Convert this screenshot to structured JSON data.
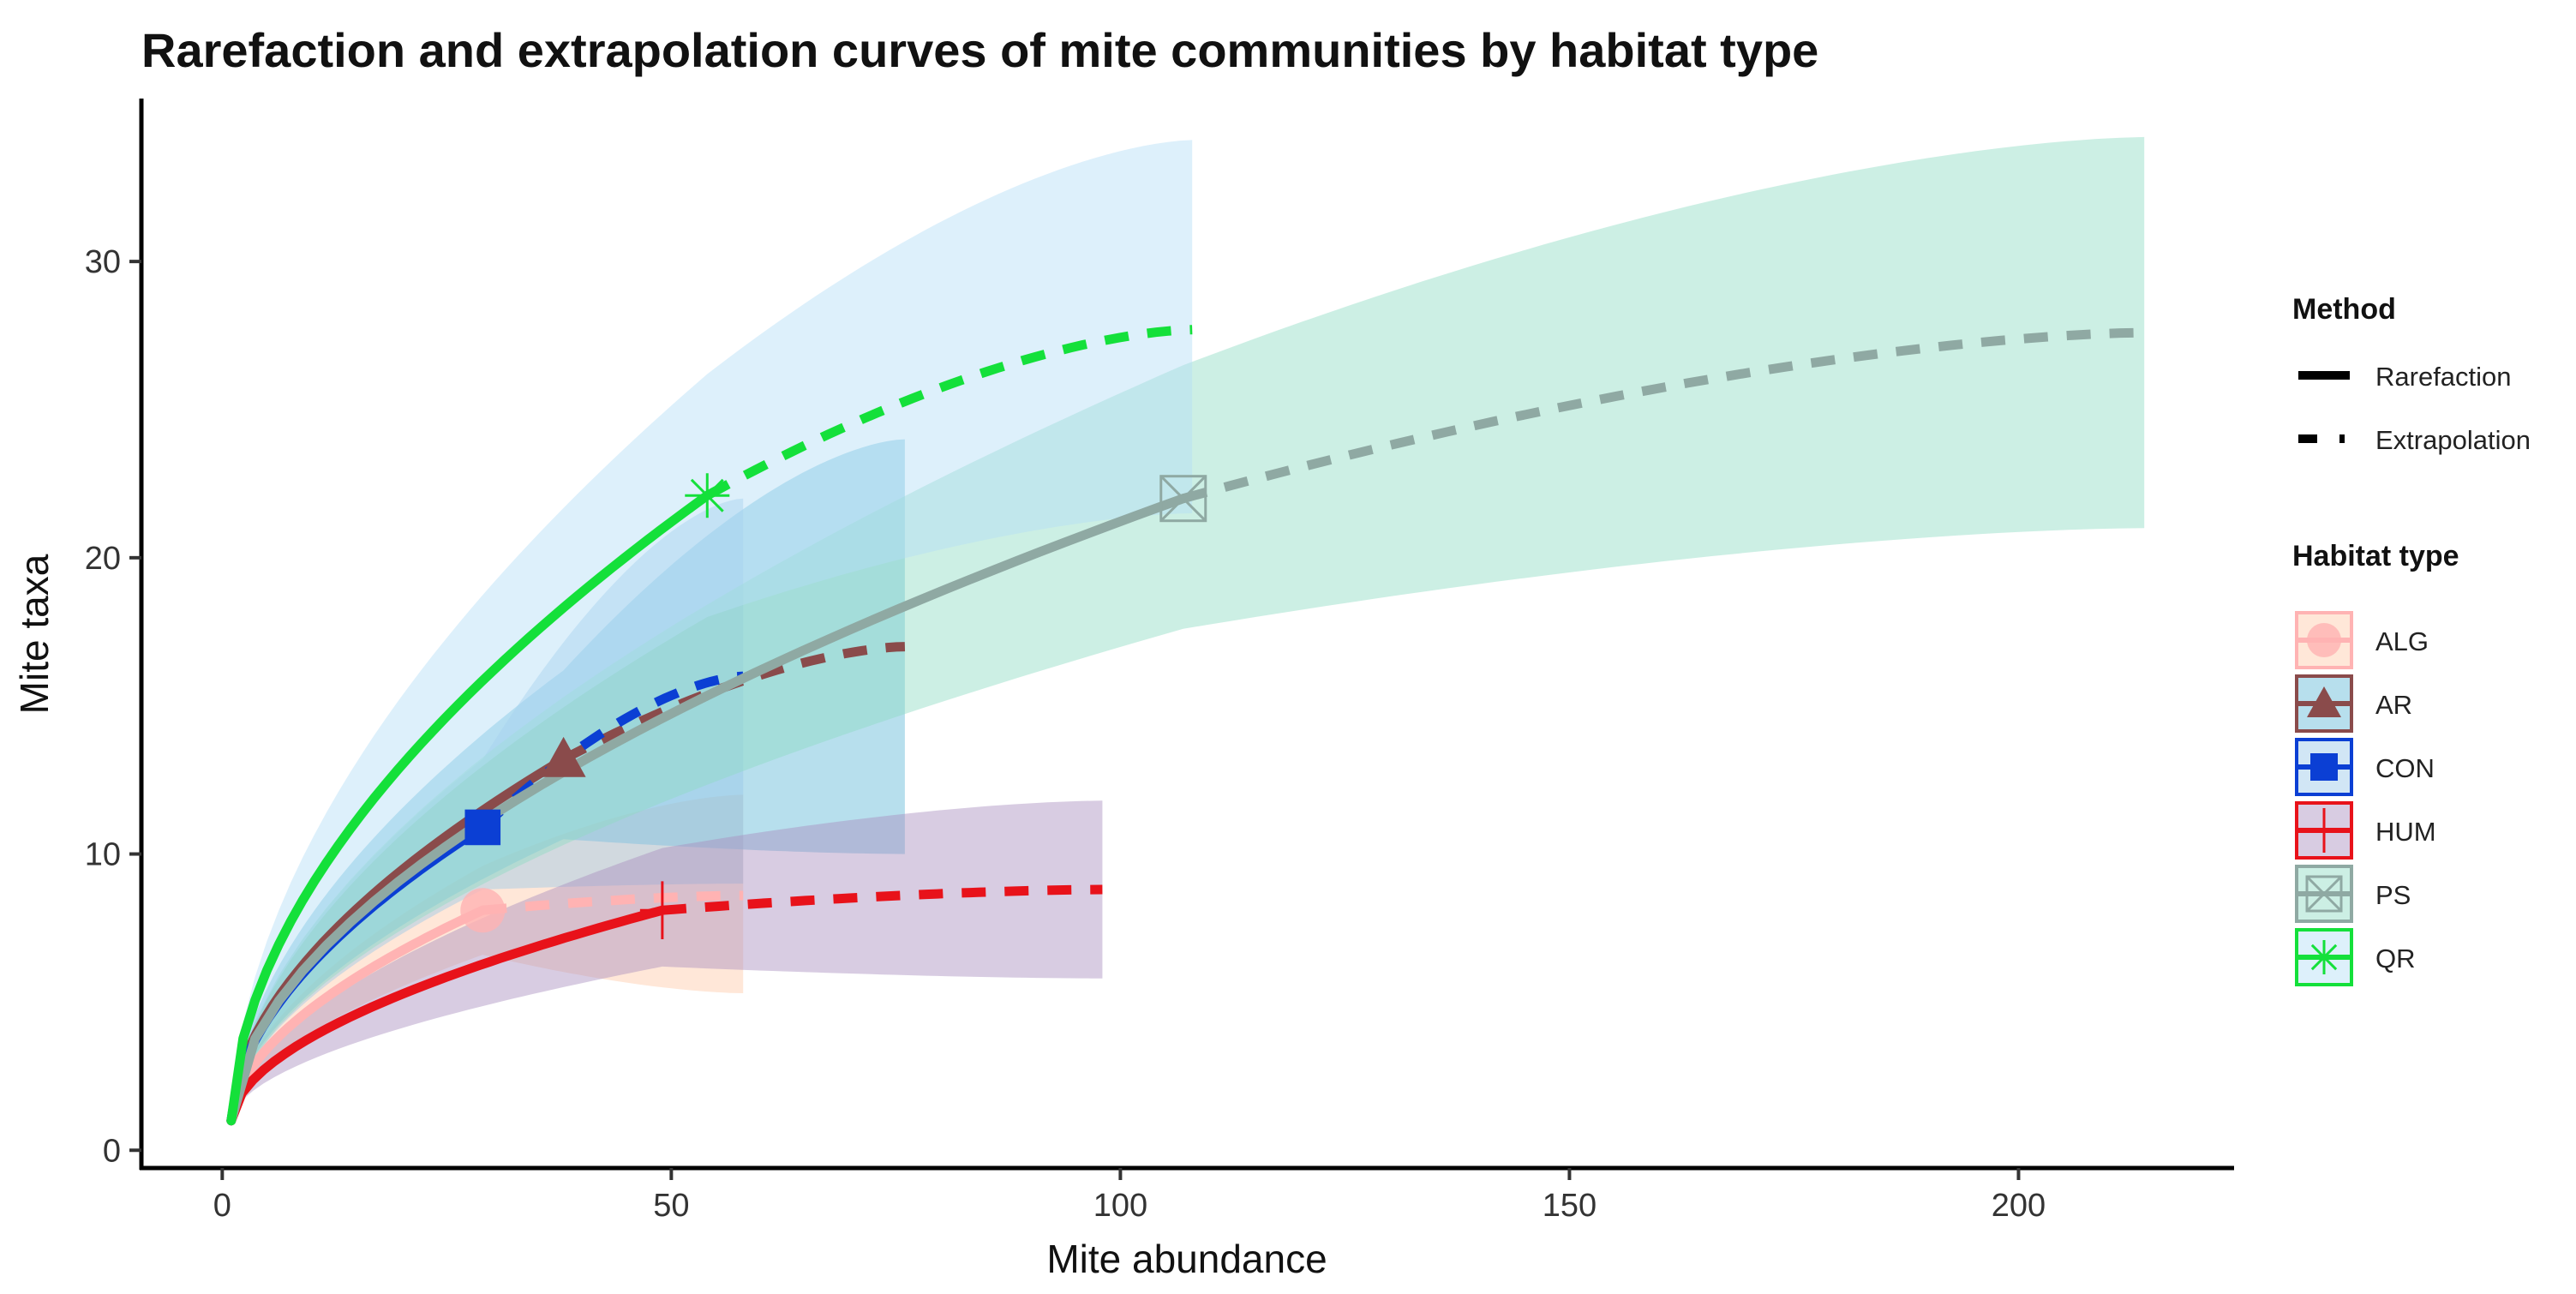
{
  "chart_data": {
    "type": "line",
    "title": "Rarefaction and extrapolation curves of mite communities by habitat type",
    "xlabel": "Mite abundance",
    "ylabel": "Mite taxa",
    "xlim": [
      -9,
      224
    ],
    "ylim": [
      -0.6,
      35.5
    ],
    "xticks": [
      0,
      50,
      100,
      150,
      200
    ],
    "yticks": [
      0,
      10,
      20,
      30
    ],
    "grid": false,
    "legend_position": "right",
    "method_legend": {
      "title": "Method",
      "items": [
        {
          "label": "Rarefaction",
          "style": "solid"
        },
        {
          "label": "Extrapolation",
          "style": "dashed"
        }
      ]
    },
    "habitat_legend_title": "Habitat type",
    "series": [
      {
        "name": "ALG",
        "marker": "circle",
        "line_color": "#ffb3b3",
        "band_color": "#ffc9a8",
        "observed": {
          "x": 29,
          "y": 8.1
        },
        "extrapolated_end": {
          "x": 58,
          "y": 8.6
        },
        "ci_observed": [
          6.6,
          9.6
        ],
        "ci_end": [
          5.3,
          12
        ]
      },
      {
        "name": "AR",
        "marker": "triangle",
        "line_color": "#8a4b4b",
        "band_color": "#5fb8d6",
        "observed": {
          "x": 38,
          "y": 13.2
        },
        "extrapolated_end": {
          "x": 76,
          "y": 17
        },
        "ci_observed": [
          10.5,
          16.2
        ],
        "ci_end": [
          10,
          24
        ]
      },
      {
        "name": "CON",
        "marker": "square",
        "line_color": "#0b3fd4",
        "band_color": "#9ac8e8",
        "observed": {
          "x": 29,
          "y": 10.9
        },
        "extrapolated_end": {
          "x": 58,
          "y": 16
        },
        "ci_observed": [
          8.8,
          13.2
        ],
        "ci_end": [
          9,
          22
        ]
      },
      {
        "name": "HUM",
        "marker": "plus",
        "line_color": "#e8121a",
        "band_color": "#a98dbf",
        "observed": {
          "x": 49,
          "y": 8.1
        },
        "extrapolated_end": {
          "x": 98,
          "y": 8.8
        },
        "ci_observed": [
          6.2,
          10.2
        ],
        "ci_end": [
          5.8,
          11.8
        ]
      },
      {
        "name": "PS",
        "marker": "square-cross",
        "line_color": "#8fa9a3",
        "band_color": "#8fdcc4",
        "observed": {
          "x": 107,
          "y": 22
        },
        "extrapolated_end": {
          "x": 214,
          "y": 27.6
        },
        "ci_observed": [
          17.6,
          26.5
        ],
        "ci_end": [
          21,
          34.2
        ]
      },
      {
        "name": "QR",
        "marker": "asterisk",
        "line_color": "#14e03a",
        "band_color": "#b4def6",
        "observed": {
          "x": 54,
          "y": 22.1
        },
        "extrapolated_end": {
          "x": 108,
          "y": 27.7
        },
        "ci_observed": [
          18,
          26.2
        ],
        "ci_end": [
          21.5,
          34.1
        ]
      }
    ]
  }
}
